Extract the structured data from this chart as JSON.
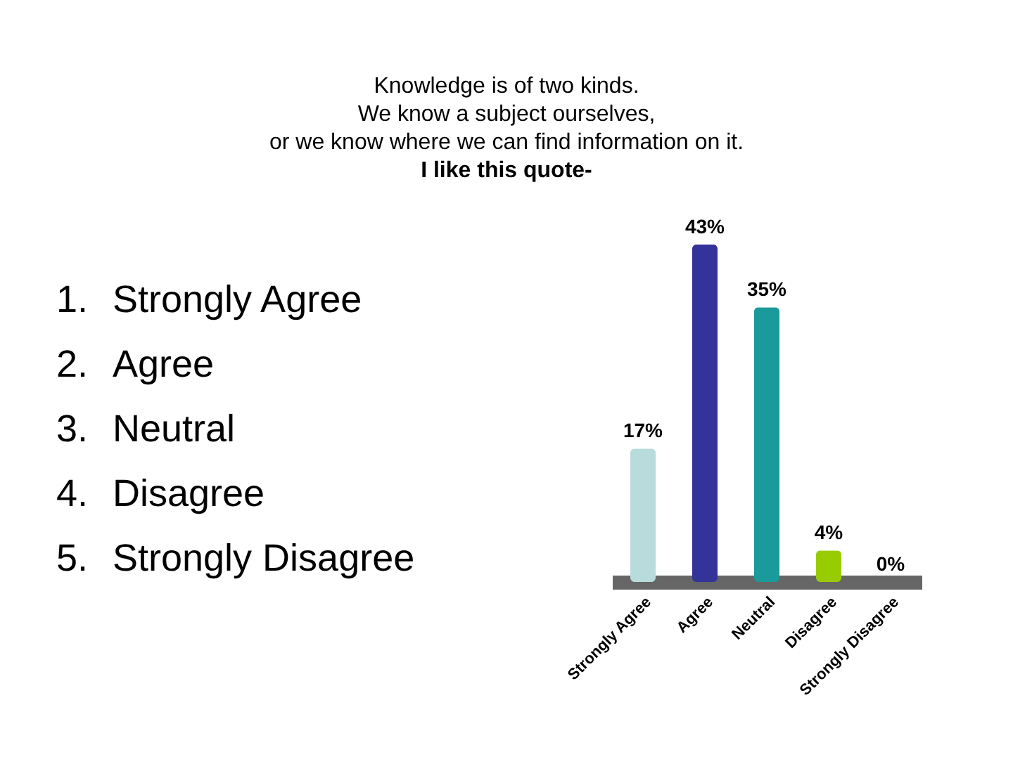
{
  "chart_data": {
    "type": "bar",
    "title": "Knowledge is of two kinds.\nWe know a subject ourselves,\nor we know where we can find information on it.",
    "subtitle": "I like this quote-",
    "categories": [
      "Strongly Agree",
      "Agree",
      "Neutral",
      "Disagree",
      "Strongly Disagree"
    ],
    "values": [
      17,
      43,
      35,
      4,
      0
    ],
    "value_labels": [
      "17%",
      "43%",
      "35%",
      "4%",
      "0%"
    ],
    "colors": [
      "#b8dcdc",
      "#33339a",
      "#1a9a9a",
      "#99cc00",
      "#777777"
    ],
    "annotations": [
      "1.\tStrongly Agree",
      "2.\tAgree",
      "3.\tNeutral",
      "4.\tDisagree",
      "5.\tStrongly Disagree"
    ],
    "tick_labels": "x",
    "legend": false
  }
}
